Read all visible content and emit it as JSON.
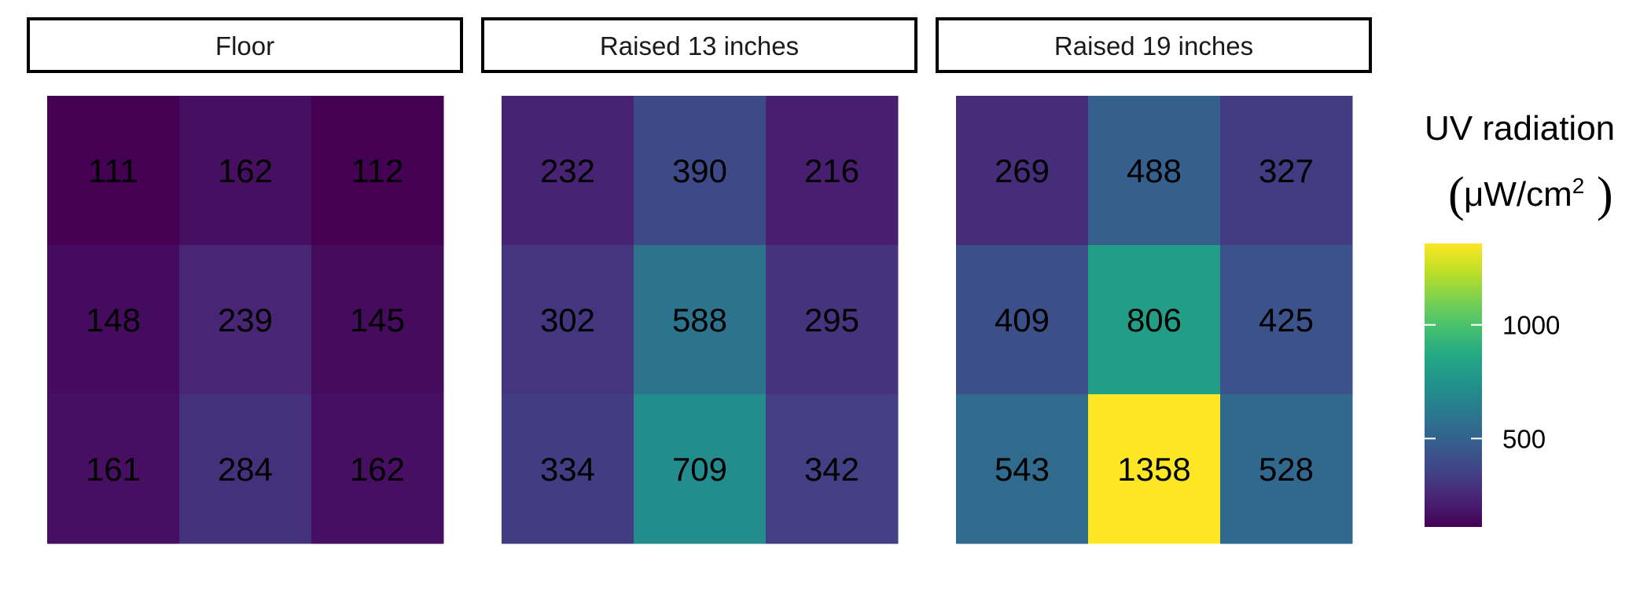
{
  "chart_data": {
    "type": "heatmap",
    "panels": [
      {
        "label": "Floor",
        "rows": [
          [
            111,
            162,
            112
          ],
          [
            148,
            239,
            145
          ],
          [
            161,
            284,
            162
          ]
        ]
      },
      {
        "label": "Raised 13 inches",
        "rows": [
          [
            232,
            390,
            216
          ],
          [
            302,
            588,
            295
          ],
          [
            334,
            709,
            342
          ]
        ]
      },
      {
        "label": "Raised 19 inches",
        "rows": [
          [
            269,
            488,
            327
          ],
          [
            409,
            806,
            425
          ],
          [
            543,
            1358,
            528
          ]
        ]
      }
    ],
    "legend": {
      "title": "UV radiation",
      "unit_prefix": "μW/cm",
      "unit_exponent": "2",
      "ticks": [
        500,
        1000
      ],
      "range": [
        111,
        1358
      ],
      "palette": "viridis",
      "placement": "right"
    }
  }
}
